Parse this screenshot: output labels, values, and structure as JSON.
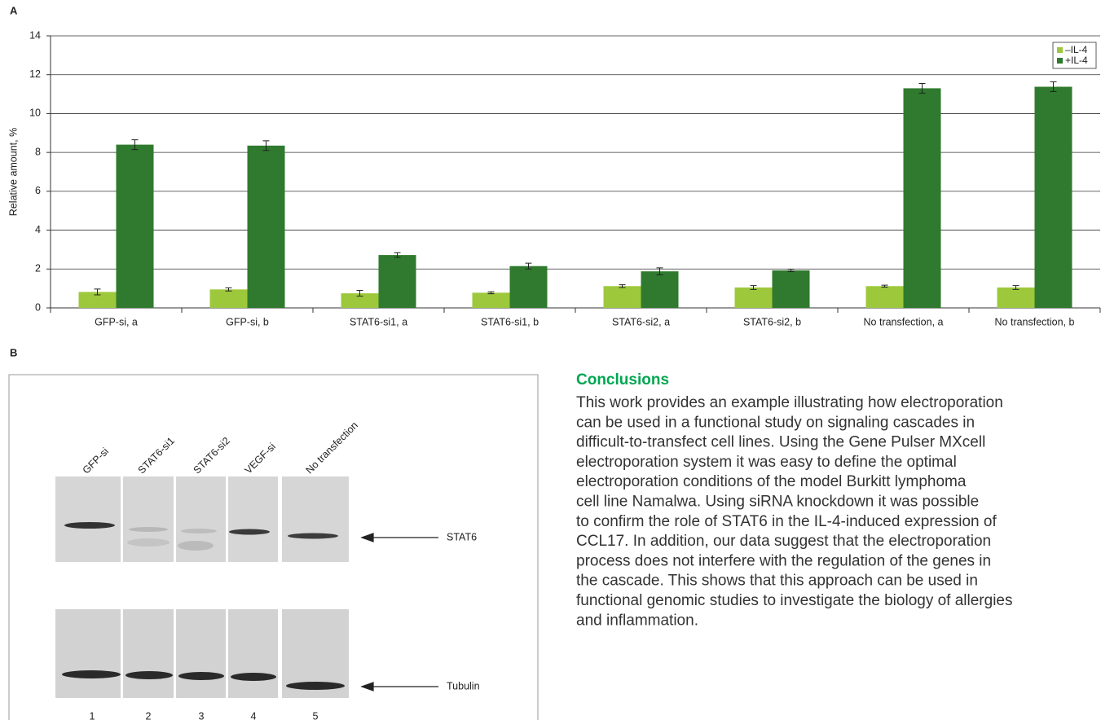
{
  "chart_data": {
    "type": "bar",
    "panel_label": "A",
    "y_label": "Relative amount, %",
    "categories": [
      "GFP-si, a",
      "GFP-si, b",
      "STAT6-si1, a",
      "STAT6-si1, b",
      "STAT6-si2, a",
      "STAT6-si2, b",
      "No transfection, a",
      "No transfection, b"
    ],
    "series": [
      {
        "name": "–IL-4",
        "color": "#9dc83c",
        "values": [
          0.82,
          0.95,
          0.75,
          0.78,
          1.12,
          1.05,
          1.12,
          1.05
        ],
        "errors": [
          0.15,
          0.08,
          0.15,
          0.05,
          0.07,
          0.1,
          0.05,
          0.1
        ]
      },
      {
        "name": "+IL-4",
        "color": "#2f7a2e",
        "values": [
          8.4,
          8.35,
          2.72,
          2.15,
          1.88,
          1.93,
          11.3,
          11.38
        ],
        "errors": [
          0.25,
          0.25,
          0.12,
          0.15,
          0.18,
          0.06,
          0.25,
          0.25
        ]
      }
    ],
    "ylim": [
      0,
      14
    ],
    "yticks": [
      0,
      2,
      4,
      6,
      8,
      10,
      12,
      14
    ],
    "grid": true,
    "legend": "top-right"
  },
  "panel_b": {
    "label": "B",
    "lanes": [
      "GFP-si",
      "STAT6-si1",
      "STAT6-si2",
      "VEGF-si",
      "No transfection"
    ],
    "lane_numbers": [
      "1",
      "2",
      "3",
      "4",
      "5"
    ],
    "markers": [
      "STAT6",
      "Tubulin"
    ]
  },
  "conclusions": {
    "heading": "Conclusions",
    "lines": [
      "This work provides an example illustrating how electroporation",
      "can be used in a functional study on signaling cascades in",
      "difficult-to-transfect cell lines. Using the Gene Pulser MXcell",
      "electroporation system it was easy to define the optimal",
      "electroporation conditions of the model Burkitt lymphoma",
      "cell line Namalwa. Using siRNA knockdown it was possible",
      "to confirm the role of STAT6 in the IL-4-induced expression of",
      "CCL17. In addition, our data suggest that the electroporation",
      "process does not interfere with the regulation of the genes in",
      "the cascade. This shows that this approach can be used in",
      "functional genomic studies to investigate the biology of allergies",
      "and inflammation."
    ]
  }
}
